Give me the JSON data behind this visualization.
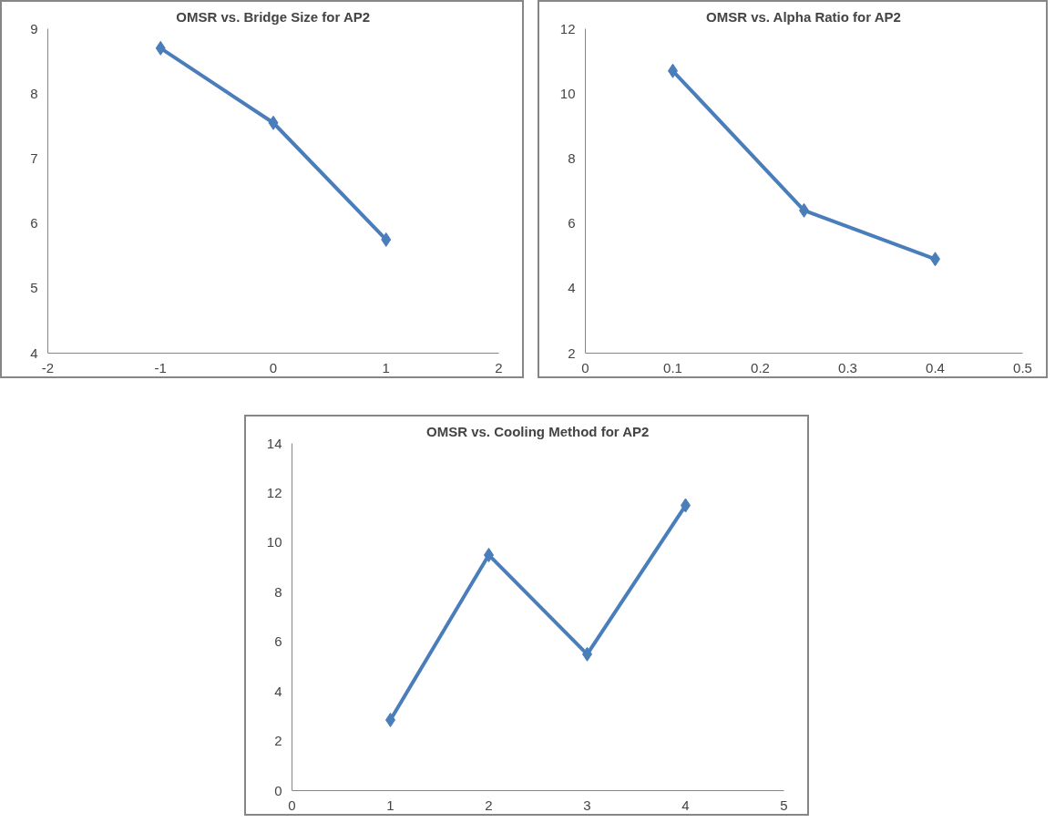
{
  "chart_data": [
    {
      "type": "line",
      "title": "OMSR vs. Bridge Size for AP2",
      "x": [
        -1,
        0,
        1
      ],
      "series": [
        {
          "color": "#4a7ebb",
          "values": [
            8.7,
            7.55,
            5.75
          ]
        }
      ],
      "xlim": [
        -2,
        2
      ],
      "xticks": [
        -2,
        -1,
        0,
        1,
        2
      ],
      "ylim": [
        4,
        9
      ],
      "yticks": [
        4,
        5,
        6,
        7,
        8,
        9
      ],
      "grid": false,
      "marker": "diamond",
      "line_style": "solid"
    },
    {
      "type": "line",
      "title": "OMSR vs. Alpha Ratio for AP2",
      "x": [
        0.1,
        0.25,
        0.4
      ],
      "series": [
        {
          "color": "#4a7ebb",
          "values": [
            10.7,
            6.4,
            4.9
          ]
        }
      ],
      "xlim": [
        0,
        0.5
      ],
      "xticks": [
        0,
        0.1,
        0.2,
        0.3,
        0.4,
        0.5
      ],
      "ylim": [
        2,
        12
      ],
      "yticks": [
        2,
        4,
        6,
        8,
        10,
        12
      ],
      "grid": false,
      "marker": "diamond",
      "line_style": "solid"
    },
    {
      "type": "line",
      "title": "OMSR vs. Cooling Method for AP2",
      "x": [
        1,
        2,
        3,
        4
      ],
      "series": [
        {
          "color": "#4a7ebb",
          "values": [
            2.85,
            9.5,
            5.5,
            11.5
          ]
        }
      ],
      "xlim": [
        0,
        5
      ],
      "xticks": [
        0,
        1,
        2,
        3,
        4,
        5
      ],
      "ylim": [
        0,
        14
      ],
      "yticks": [
        0,
        2,
        4,
        6,
        8,
        10,
        12,
        14
      ],
      "grid": false,
      "marker": "diamond",
      "line_style": "solid"
    }
  ]
}
